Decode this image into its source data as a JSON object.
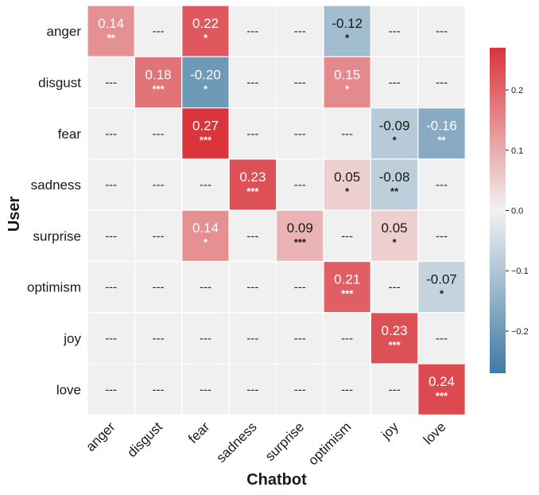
{
  "chart_data": {
    "type": "heatmap",
    "xlabel": "Chatbot",
    "ylabel": "User",
    "x_categories": [
      "anger",
      "disgust",
      "fear",
      "sadness",
      "surprise",
      "optimism",
      "joy",
      "love"
    ],
    "y_categories": [
      "anger",
      "disgust",
      "fear",
      "sadness",
      "surprise",
      "optimism",
      "joy",
      "love"
    ],
    "cells": [
      [
        {
          "v": 0.14,
          "label": "0.14",
          "sig": "**"
        },
        {
          "label": "---"
        },
        {
          "v": 0.22,
          "label": "0.22",
          "sig": "*"
        },
        {
          "label": "---"
        },
        {
          "label": "---"
        },
        {
          "v": -0.12,
          "label": "-0.12",
          "sig": "*"
        },
        {
          "label": "---"
        },
        {
          "label": "---"
        }
      ],
      [
        {
          "label": "---"
        },
        {
          "v": 0.18,
          "label": "0.18",
          "sig": "***"
        },
        {
          "v": -0.2,
          "label": "-0.20",
          "sig": "*"
        },
        {
          "label": "---"
        },
        {
          "label": "---"
        },
        {
          "v": 0.15,
          "label": "0.15",
          "sig": "*"
        },
        {
          "label": "---"
        },
        {
          "label": "---"
        }
      ],
      [
        {
          "label": "---"
        },
        {
          "label": "---"
        },
        {
          "v": 0.27,
          "label": "0.27",
          "sig": "***"
        },
        {
          "label": "---"
        },
        {
          "label": "---"
        },
        {
          "label": "---"
        },
        {
          "v": -0.09,
          "label": "-0.09",
          "sig": "*"
        },
        {
          "v": -0.16,
          "label": "-0.16",
          "sig": "**"
        }
      ],
      [
        {
          "label": "---"
        },
        {
          "label": "---"
        },
        {
          "label": "---"
        },
        {
          "v": 0.23,
          "label": "0.23",
          "sig": "***"
        },
        {
          "label": "---"
        },
        {
          "v": 0.05,
          "label": "0.05",
          "sig": "*"
        },
        {
          "v": -0.08,
          "label": "-0.08",
          "sig": "**"
        },
        {
          "label": "---"
        }
      ],
      [
        {
          "label": "---"
        },
        {
          "label": "---"
        },
        {
          "v": 0.14,
          "label": "0.14",
          "sig": "*"
        },
        {
          "label": "---"
        },
        {
          "v": 0.09,
          "label": "0.09",
          "sig": "***"
        },
        {
          "label": "---"
        },
        {
          "v": 0.05,
          "label": "0.05",
          "sig": "*"
        },
        {
          "label": "---"
        }
      ],
      [
        {
          "label": "---"
        },
        {
          "label": "---"
        },
        {
          "label": "---"
        },
        {
          "label": "---"
        },
        {
          "label": "---"
        },
        {
          "v": 0.21,
          "label": "0.21",
          "sig": "***"
        },
        {
          "label": "---"
        },
        {
          "v": -0.07,
          "label": "-0.07",
          "sig": "*"
        }
      ],
      [
        {
          "label": "---"
        },
        {
          "label": "---"
        },
        {
          "label": "---"
        },
        {
          "label": "---"
        },
        {
          "label": "---"
        },
        {
          "label": "---"
        },
        {
          "v": 0.23,
          "label": "0.23",
          "sig": "***"
        },
        {
          "label": "---"
        }
      ],
      [
        {
          "label": "---"
        },
        {
          "label": "---"
        },
        {
          "label": "---"
        },
        {
          "label": "---"
        },
        {
          "label": "---"
        },
        {
          "label": "---"
        },
        {
          "label": "---"
        },
        {
          "v": 0.24,
          "label": "0.24",
          "sig": "***"
        }
      ]
    ],
    "colorbar": {
      "vmin": -0.27,
      "vmax": 0.27,
      "ticks": [
        0.2,
        0.1,
        0.0,
        -0.1,
        -0.2
      ],
      "tick_labels": [
        "0.2",
        "0.1",
        "0.0",
        "−0.1",
        "−0.2"
      ]
    },
    "colors": {
      "empty_cell": "#f0f0f0",
      "neg_max": "#3f7ba3",
      "neutral": "#f2f2f2",
      "pos_max": "#d9353b"
    }
  }
}
